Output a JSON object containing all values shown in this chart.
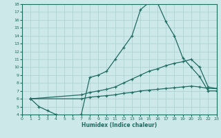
{
  "xlabel": "Humidex (Indice chaleur)",
  "xlim": [
    0,
    23
  ],
  "ylim": [
    4,
    18
  ],
  "xticks": [
    0,
    1,
    2,
    3,
    4,
    5,
    6,
    7,
    8,
    9,
    10,
    11,
    12,
    13,
    14,
    15,
    16,
    17,
    18,
    19,
    20,
    21,
    22,
    23
  ],
  "yticks": [
    4,
    5,
    6,
    7,
    8,
    9,
    10,
    11,
    12,
    13,
    14,
    15,
    16,
    17,
    18
  ],
  "background_color": "#cce8e8",
  "line_color": "#1e6b60",
  "grid_color": "#aacfcf",
  "line1_x": [
    1,
    2,
    3,
    4,
    5,
    6,
    7,
    8,
    9,
    10,
    11,
    12,
    13,
    14,
    15,
    16,
    17,
    18,
    19,
    20,
    21,
    22,
    23
  ],
  "line1_y": [
    6.0,
    5.0,
    4.5,
    4.0,
    3.8,
    3.8,
    4.0,
    8.7,
    9.0,
    9.5,
    11.0,
    12.5,
    14.0,
    17.3,
    18.2,
    18.2,
    15.8,
    14.0,
    11.2,
    10.0,
    8.8,
    7.0,
    7.0
  ],
  "line2_x": [
    1,
    7,
    8,
    9,
    10,
    11,
    12,
    13,
    14,
    15,
    16,
    17,
    18,
    19,
    20,
    21,
    22,
    23
  ],
  "line2_y": [
    6.0,
    6.5,
    6.8,
    7.0,
    7.2,
    7.5,
    8.0,
    8.5,
    9.0,
    9.5,
    9.8,
    10.2,
    10.5,
    10.7,
    11.0,
    10.0,
    7.5,
    7.3
  ],
  "line3_x": [
    1,
    7,
    8,
    9,
    10,
    11,
    12,
    13,
    14,
    15,
    16,
    17,
    18,
    19,
    20,
    21,
    22,
    23
  ],
  "line3_y": [
    6.0,
    6.0,
    6.2,
    6.3,
    6.4,
    6.5,
    6.7,
    6.8,
    7.0,
    7.1,
    7.2,
    7.3,
    7.4,
    7.5,
    7.6,
    7.5,
    7.3,
    7.3
  ]
}
